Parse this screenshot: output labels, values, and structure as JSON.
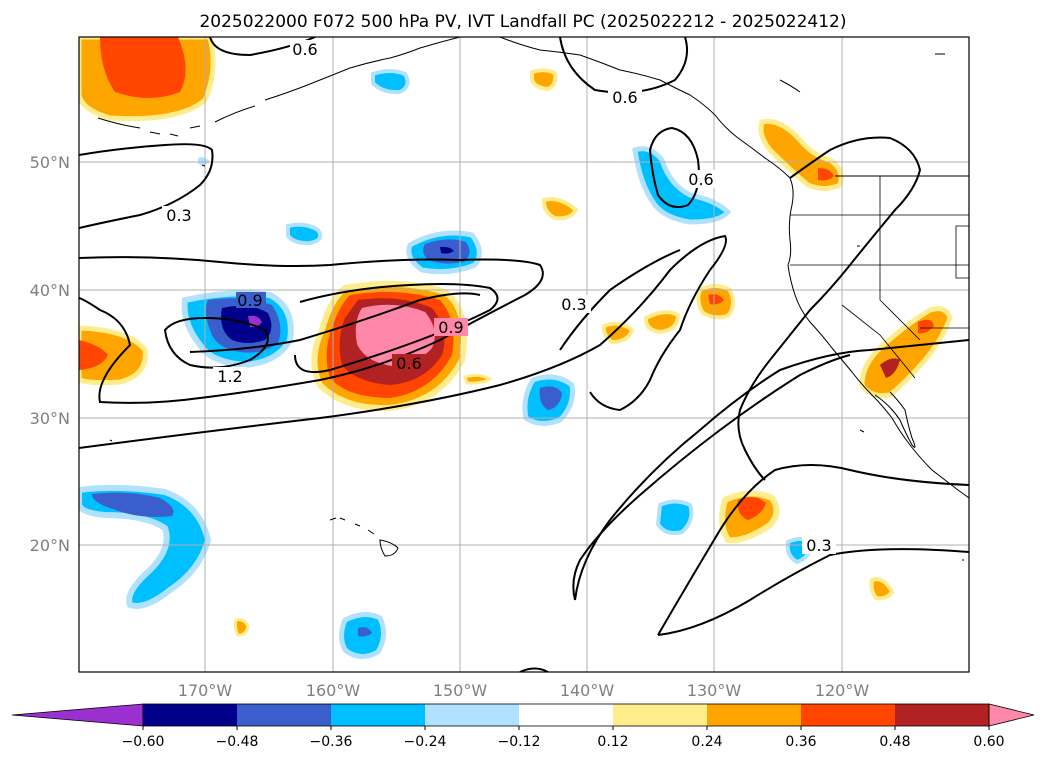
{
  "title": "2025022000 F072 500 hPa PV, IVT Landfall PC (2025022212 - 2025022412)",
  "lon_labels": [
    "170°W",
    "160°W",
    "150°W",
    "140°W",
    "130°W",
    "120°W"
  ],
  "lat_labels": [
    "50°N",
    "40°N",
    "30°N",
    "20°N"
  ],
  "colorbar": {
    "tick_labels": [
      "−0.60",
      "−0.48",
      "−0.36",
      "−0.24",
      "−0.12",
      "0.12",
      "0.24",
      "0.36",
      "0.48",
      "0.60"
    ],
    "colors": [
      "#9b30d0",
      "#00008b",
      "#3a5fcd",
      "#00bfff",
      "#b0e2ff",
      "#ffffff",
      "#ffec8b",
      "#ffa500",
      "#ff4500",
      "#b22222",
      "#ff88aa"
    ]
  },
  "contour_labels": [
    "0.6",
    "0.3",
    "0.6",
    "0.6",
    "0.9",
    "1.2",
    "0.6",
    "0.3",
    "0.3",
    "0.9"
  ],
  "legend_colors": {
    "neg1": "#b0e2ff",
    "neg2": "#00bfff",
    "neg3": "#3a5fcd",
    "neg4": "#00008b",
    "neg5": "#9b30d0",
    "pos1": "#ffec8b",
    "pos2": "#ffa500",
    "pos3": "#ff4500",
    "pos4": "#b22222",
    "pos5": "#ff88aa"
  }
}
